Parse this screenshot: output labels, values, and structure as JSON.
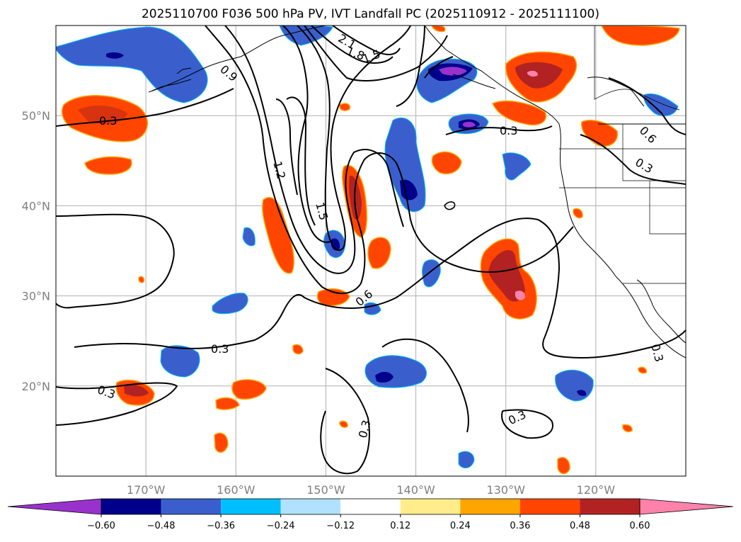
{
  "title": "2025110700 F036 500 hPa PV, IVT Landfall PC (2025110912 - 2025111100)",
  "map": {
    "lon_range": [
      -180,
      -110
    ],
    "lat_range": [
      10,
      60
    ],
    "lat_ticks": [
      {
        "value": 50,
        "label": "50°N"
      },
      {
        "value": 40,
        "label": "40°N"
      },
      {
        "value": 30,
        "label": "30°N"
      },
      {
        "value": 20,
        "label": "20°N"
      }
    ],
    "lon_ticks": [
      {
        "value": -170,
        "label": "170°W"
      },
      {
        "value": -160,
        "label": "160°W"
      },
      {
        "value": -150,
        "label": "150°W"
      },
      {
        "value": -140,
        "label": "140°W"
      },
      {
        "value": -130,
        "label": "130°W"
      },
      {
        "value": -120,
        "label": "120°W"
      }
    ],
    "grid": true
  },
  "colorbar": {
    "levels": [
      -0.6,
      -0.48,
      -0.36,
      -0.24,
      -0.12,
      0.12,
      0.24,
      0.36,
      0.48,
      0.6
    ],
    "labels": [
      "−0.60",
      "−0.48",
      "−0.36",
      "−0.24",
      "−0.12",
      "0.12",
      "0.24",
      "0.36",
      "0.48",
      "0.60"
    ],
    "colors": [
      "#9932cc",
      "#00008b",
      "#3a5fcd",
      "#00bfff",
      "#b0e2ff",
      "#ffffff",
      "#ffec8b",
      "#ffa500",
      "#ff4500",
      "#b22222",
      "#ff82ab"
    ],
    "extend": "both"
  },
  "contour_labels": [
    "2.1",
    "1.8",
    "1.5",
    "0.9",
    "0.3",
    "0.3",
    "0.6",
    "0.3",
    "1.2",
    "1.5",
    "0.6",
    "0.3",
    "0.3",
    "0.3",
    "0.3",
    "0.3"
  ]
}
